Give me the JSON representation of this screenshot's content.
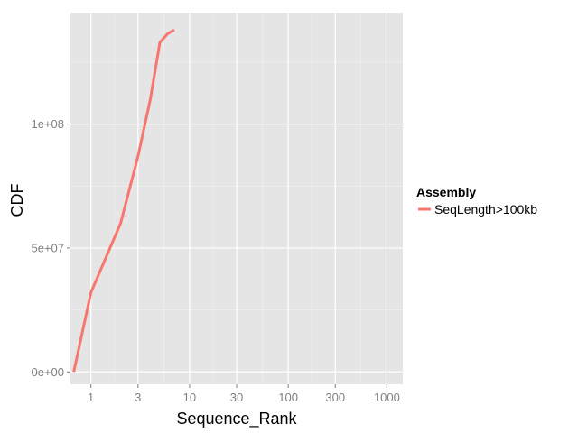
{
  "chart_data": {
    "type": "line",
    "xlabel": "Sequence_Rank",
    "ylabel": "CDF",
    "x_scale": "log10",
    "xlim": [
      0.62,
      1450
    ],
    "ylim": [
      -5000000,
      145000000
    ],
    "x_ticks": [
      1,
      3,
      10,
      30,
      100,
      300,
      1000
    ],
    "x_tick_labels": [
      "1",
      "3",
      "10",
      "30",
      "100",
      "300",
      "1000"
    ],
    "y_ticks": [
      0,
      50000000,
      100000000
    ],
    "y_tick_labels": [
      "0e+00",
      "5e+07",
      "1e+08"
    ],
    "grid": true,
    "legend": {
      "title": "Assembly",
      "placement": "right"
    },
    "series": [
      {
        "name": "SeqLength>100kb",
        "color": "#F8766D",
        "x": [
          0.67,
          1,
          2,
          3,
          4,
          5,
          6,
          7
        ],
        "y": [
          0,
          32000000,
          60000000,
          87000000,
          110000000,
          133000000,
          136500000,
          138000000
        ]
      }
    ]
  }
}
